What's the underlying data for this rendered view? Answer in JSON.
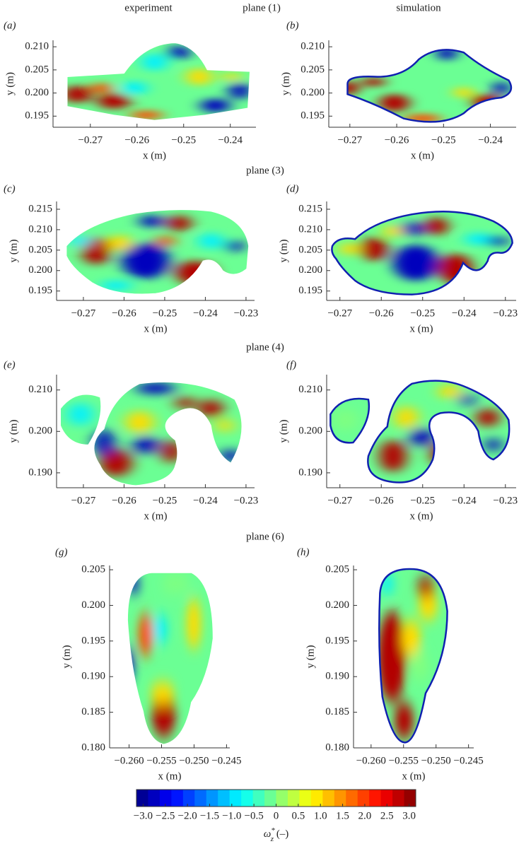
{
  "column_titles": [
    "experiment",
    "simulation"
  ],
  "plane_titles": [
    "plane (1)",
    "plane (3)",
    "plane (4)",
    "plane (6)"
  ],
  "chart_data": [
    {
      "type": "contour",
      "label": "(a)",
      "xlabel": "x (m)",
      "ylabel": "y (m)",
      "xlim": [
        -0.278,
        -0.2345
      ],
      "ylim": [
        0.1926,
        0.2114
      ],
      "xticks": [
        {
          "value": -0.27,
          "label": "−0.27"
        },
        {
          "value": -0.26,
          "label": "−0.26"
        },
        {
          "value": -0.25,
          "label": "−0.25"
        },
        {
          "value": -0.24,
          "label": "−0.24"
        }
      ],
      "yticks": [
        {
          "value": 0.21,
          "label": "0.210"
        },
        0.205,
        {
          "value": 0.2,
          "label": "0.200"
        },
        0.195
      ]
    },
    {
      "type": "contour",
      "label": "(b)",
      "xlabel": "x (m)",
      "ylabel": "y (m)",
      "xlim": [
        -0.2745,
        -0.2345
      ],
      "ylim": [
        0.1926,
        0.2114
      ],
      "xticks": [
        {
          "value": -0.27,
          "label": "−0.27"
        },
        {
          "value": -0.26,
          "label": "−0.26"
        },
        {
          "value": -0.25,
          "label": "−0.25"
        },
        {
          "value": -0.24,
          "label": "−0.24"
        }
      ],
      "yticks": [
        {
          "value": 0.21,
          "label": "0.210"
        },
        0.205,
        {
          "value": 0.2,
          "label": "0.200"
        },
        0.195
      ]
    },
    {
      "type": "contour",
      "label": "(c)",
      "xlabel": "x (m)",
      "ylabel": "y (m)",
      "xlim": [
        -0.2766,
        -0.2279
      ],
      "ylim": [
        0.1927,
        0.2169
      ],
      "xticks": [
        {
          "value": -0.27,
          "label": "−0.27"
        },
        {
          "value": -0.26,
          "label": "−0.26"
        },
        {
          "value": -0.25,
          "label": "−0.25"
        },
        {
          "value": -0.24,
          "label": "−0.24"
        },
        {
          "value": -0.23,
          "label": "−0.23"
        }
      ],
      "yticks": [
        0.215,
        {
          "value": 0.21,
          "label": "0.210"
        },
        0.205,
        {
          "value": 0.2,
          "label": "0.200"
        },
        0.195
      ]
    },
    {
      "type": "contour",
      "label": "(d)",
      "xlabel": "x (m)",
      "ylabel": "y (m)",
      "xlim": [
        -0.2732,
        -0.2274
      ],
      "ylim": [
        0.1927,
        0.2169
      ],
      "xticks": [
        {
          "value": -0.27,
          "label": "−0.27"
        },
        {
          "value": -0.26,
          "label": "−0.26"
        },
        {
          "value": -0.25,
          "label": "−0.25"
        },
        {
          "value": -0.24,
          "label": "−0.24"
        },
        {
          "value": -0.23,
          "label": "−0.23"
        }
      ],
      "yticks": [
        0.215,
        {
          "value": 0.21,
          "label": "0.210"
        },
        0.205,
        {
          "value": 0.2,
          "label": "0.200"
        },
        0.195
      ]
    },
    {
      "type": "contour",
      "label": "(e)",
      "xlabel": "x (m)",
      "ylabel": "y (m)",
      "xlim": [
        -0.2766,
        -0.2279
      ],
      "ylim": [
        0.1864,
        0.2137
      ],
      "xticks": [
        {
          "value": -0.27,
          "label": "−0.27"
        },
        {
          "value": -0.26,
          "label": "−0.26"
        },
        {
          "value": -0.25,
          "label": "−0.25"
        },
        {
          "value": -0.24,
          "label": "−0.24"
        },
        {
          "value": -0.23,
          "label": "−0.23"
        }
      ],
      "yticks": [
        {
          "value": 0.21,
          "label": "0.210"
        },
        {
          "value": 0.2,
          "label": "0.200"
        },
        {
          "value": 0.19,
          "label": "0.190"
        }
      ]
    },
    {
      "type": "contour",
      "label": "(f)",
      "xlabel": "x (m)",
      "ylabel": "y (m)",
      "xlim": [
        -0.2732,
        -0.2274
      ],
      "ylim": [
        0.1864,
        0.2137
      ],
      "xticks": [
        {
          "value": -0.27,
          "label": "−0.27"
        },
        {
          "value": -0.26,
          "label": "−0.26"
        },
        {
          "value": -0.25,
          "label": "−0.25"
        },
        {
          "value": -0.24,
          "label": "−0.24"
        },
        {
          "value": -0.23,
          "label": "−0.23"
        }
      ],
      "yticks": [
        {
          "value": 0.21,
          "label": "0.210"
        },
        {
          "value": 0.2,
          "label": "0.200"
        },
        {
          "value": 0.19,
          "label": "0.190"
        }
      ]
    },
    {
      "type": "contour",
      "label": "(g)",
      "xlabel": "x (m)",
      "ylabel": "y (m)",
      "xlim": [
        -0.263,
        -0.2445
      ],
      "ylim": [
        0.18,
        0.2056
      ],
      "xticks": [
        {
          "value": -0.26,
          "label": "−0.260"
        },
        {
          "value": -0.255,
          "label": "−0.255"
        },
        {
          "value": -0.25,
          "label": "−0.250"
        },
        {
          "value": -0.245,
          "label": "−0.245"
        }
      ],
      "yticks": [
        0.205,
        {
          "value": 0.2,
          "label": "0.200"
        },
        0.195,
        {
          "value": 0.19,
          "label": "0.190"
        },
        0.185,
        {
          "value": 0.18,
          "label": "0.180"
        }
      ]
    },
    {
      "type": "contour",
      "label": "(h)",
      "xlabel": "x (m)",
      "ylabel": "y (m)",
      "xlim": [
        -0.2627,
        -0.2442
      ],
      "ylim": [
        0.18,
        0.2056
      ],
      "xticks": [
        {
          "value": -0.26,
          "label": "−0.260"
        },
        {
          "value": -0.255,
          "label": "−0.255"
        },
        {
          "value": -0.25,
          "label": "−0.250"
        },
        {
          "value": -0.245,
          "label": "−0.245"
        }
      ],
      "yticks": [
        0.205,
        {
          "value": 0.2,
          "label": "0.200"
        },
        0.195,
        {
          "value": 0.19,
          "label": "0.190"
        },
        0.185,
        {
          "value": 0.18,
          "label": "0.180"
        }
      ]
    },
    {
      "type": "colorbar",
      "xlim": [
        -3.15,
        3.15
      ],
      "xlabel": {
        "symbol": "ω",
        "superscript": "*",
        "subscript": "z",
        "unit": " (–)"
      },
      "xticks": [
        {
          "value": -3,
          "label": "−3.0"
        },
        {
          "value": -2.5,
          "label": "−2.5"
        },
        {
          "value": -2,
          "label": "−2.0"
        },
        {
          "value": -1.5,
          "label": "−1.5"
        },
        {
          "value": -1,
          "label": "−1.0"
        },
        {
          "value": -0.5,
          "label": "−0.5"
        },
        0,
        0.5,
        {
          "value": 1,
          "label": "1.0"
        },
        1.5,
        {
          "value": 2,
          "label": "2.0"
        },
        2.5,
        {
          "value": 3,
          "label": "3.0"
        }
      ]
    }
  ]
}
